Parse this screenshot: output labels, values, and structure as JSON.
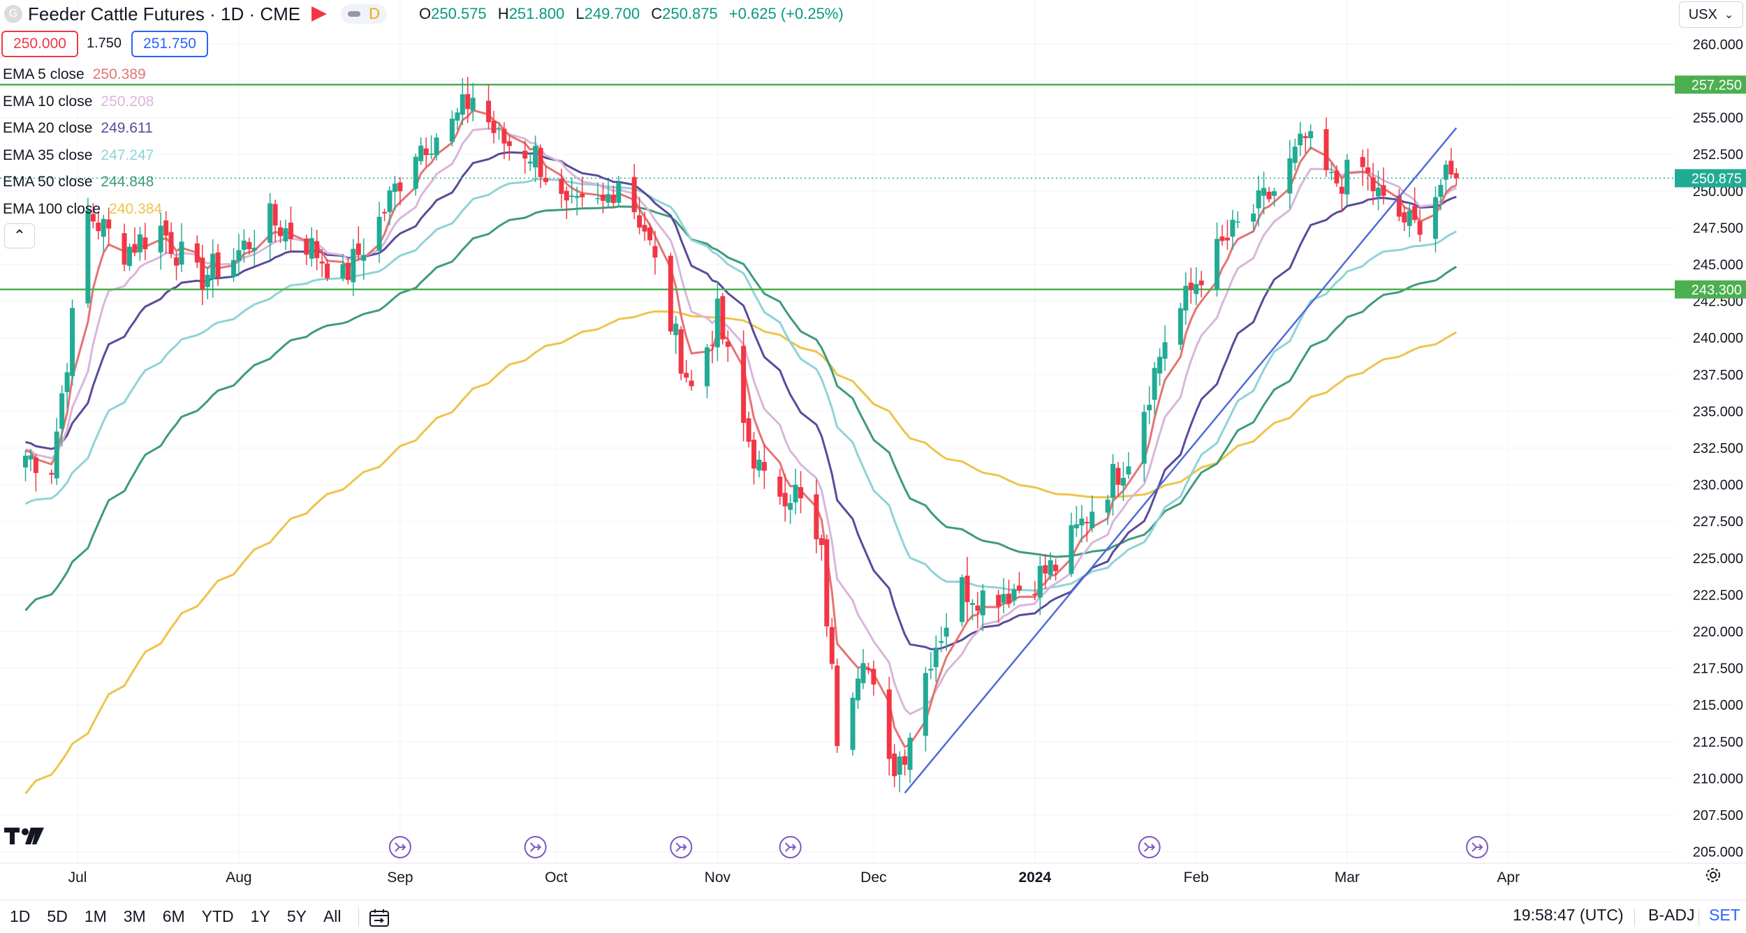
{
  "header": {
    "logo_letter": "G",
    "title": "Feeder Cattle Futures · 1D · CME",
    "pill_label": "D",
    "ohlc": {
      "o_label": "O",
      "o": "250.575",
      "h_label": "H",
      "h": "251.800",
      "l_label": "L",
      "l": "249.700",
      "c_label": "C",
      "c": "250.875",
      "change": "+0.625 (+0.25%)"
    },
    "bid": "250.000",
    "spread": "1.750",
    "ask": "251.750",
    "currency": "USX"
  },
  "emas": [
    {
      "label": "EMA 5 close",
      "value": "250.389",
      "color": "#e57373"
    },
    {
      "label": "EMA 10 close",
      "value": "250.208",
      "color": "#d9b6d9"
    },
    {
      "label": "EMA 20 close",
      "value": "249.611",
      "color": "#5b4a9b"
    },
    {
      "label": "EMA 35 close",
      "value": "247.247",
      "color": "#8fd3d8"
    },
    {
      "label": "EMA 50 close",
      "value": "244.848",
      "color": "#3e9a7e"
    },
    {
      "label": "EMA 100 close",
      "value": "240.384",
      "color": "#eec44a"
    }
  ],
  "toolbar": {
    "ranges": [
      "1D",
      "5D",
      "1M",
      "3M",
      "6M",
      "YTD",
      "1Y",
      "5Y",
      "All"
    ],
    "clock": "19:58:47 (UTC)",
    "adjust": "B-ADJ",
    "set": "SET"
  },
  "chart_data": {
    "type": "candlestick",
    "ylim": [
      204.0,
      261.5
    ],
    "y_ticks": [
      "205.000",
      "207.500",
      "210.000",
      "212.500",
      "215.000",
      "217.500",
      "220.000",
      "222.500",
      "225.000",
      "227.500",
      "230.000",
      "232.500",
      "235.000",
      "237.500",
      "240.000",
      "242.500",
      "245.000",
      "247.500",
      "250.000",
      "252.500",
      "255.000",
      "257.500",
      "260.000"
    ],
    "x_labels": [
      "Jul",
      "Aug",
      "Sep",
      "Oct",
      "Nov",
      "Dec",
      "2024",
      "Feb",
      "Mar",
      "Apr"
    ],
    "horizontal_lines": [
      {
        "value": 257.25,
        "label": "257.250",
        "color": "#4caf50"
      },
      {
        "value": 243.3,
        "label": "243.300",
        "color": "#4caf50"
      }
    ],
    "last_price": {
      "value": 250.875,
      "label": "250.875",
      "color": "#22ab94"
    },
    "trendline": {
      "from": {
        "date": "2023-12-07",
        "value": 209.0
      },
      "to": {
        "date": "2024-03-22",
        "value": 254.3
      },
      "color": "#4f6bd6"
    },
    "anchors": [
      {
        "date": "2023-06-21",
        "close": 232.0
      },
      {
        "date": "2023-06-26",
        "close": 231.3
      },
      {
        "date": "2023-07-03",
        "close": 248.5
      },
      {
        "date": "2023-07-10",
        "close": 246.0
      },
      {
        "date": "2023-07-17",
        "close": 247.5
      },
      {
        "date": "2023-07-24",
        "close": 244.0
      },
      {
        "date": "2023-07-31",
        "close": 245.5
      },
      {
        "date": "2023-08-07",
        "close": 248.0
      },
      {
        "date": "2023-08-14",
        "close": 246.5
      },
      {
        "date": "2023-08-21",
        "close": 244.0
      },
      {
        "date": "2023-08-28",
        "close": 248.0
      },
      {
        "date": "2023-09-04",
        "close": 253.0
      },
      {
        "date": "2023-09-11",
        "close": 254.5
      },
      {
        "date": "2023-09-15",
        "close": 256.5
      },
      {
        "date": "2023-09-20",
        "close": 253.5
      },
      {
        "date": "2023-09-27",
        "close": 252.5
      },
      {
        "date": "2023-10-03",
        "close": 248.5
      },
      {
        "date": "2023-10-10",
        "close": 249.0
      },
      {
        "date": "2023-10-13",
        "close": 251.0
      },
      {
        "date": "2023-10-18",
        "close": 247.5
      },
      {
        "date": "2023-10-23",
        "close": 241.0
      },
      {
        "date": "2023-10-27",
        "close": 236.5
      },
      {
        "date": "2023-11-01",
        "close": 241.5
      },
      {
        "date": "2023-11-06",
        "close": 234.0
      },
      {
        "date": "2023-11-10",
        "close": 230.0
      },
      {
        "date": "2023-11-16",
        "close": 229.5
      },
      {
        "date": "2023-11-21",
        "close": 225.0
      },
      {
        "date": "2023-11-24",
        "close": 213.0
      },
      {
        "date": "2023-11-29",
        "close": 219.0
      },
      {
        "date": "2023-12-04",
        "close": 210.5
      },
      {
        "date": "2023-12-07",
        "close": 212.0
      },
      {
        "date": "2023-12-12",
        "close": 218.5
      },
      {
        "date": "2023-12-18",
        "close": 223.0
      },
      {
        "date": "2023-12-22",
        "close": 222.5
      },
      {
        "date": "2023-12-29",
        "close": 223.0
      },
      {
        "date": "2024-01-05",
        "close": 224.5
      },
      {
        "date": "2024-01-12",
        "close": 228.5
      },
      {
        "date": "2024-01-19",
        "close": 232.0
      },
      {
        "date": "2024-01-26",
        "close": 240.0
      },
      {
        "date": "2024-02-02",
        "close": 244.5
      },
      {
        "date": "2024-02-09",
        "close": 247.5
      },
      {
        "date": "2024-02-16",
        "close": 250.0
      },
      {
        "date": "2024-02-22",
        "close": 253.5
      },
      {
        "date": "2024-02-27",
        "close": 250.5
      },
      {
        "date": "2024-03-04",
        "close": 251.5
      },
      {
        "date": "2024-03-08",
        "close": 249.0
      },
      {
        "date": "2024-03-14",
        "close": 247.5
      },
      {
        "date": "2024-03-19",
        "close": 250.5
      },
      {
        "date": "2024-03-22",
        "close": 250.875
      }
    ],
    "series": [
      {
        "name": "EMA 5 close",
        "color": "#e57373",
        "ends_at": 250.389
      },
      {
        "name": "EMA 10 close",
        "color": "#d9b6d9",
        "ends_at": 250.208
      },
      {
        "name": "EMA 20 close",
        "color": "#5b4a9b",
        "ends_at": 249.611
      },
      {
        "name": "EMA 35 close",
        "color": "#8fd3d8",
        "ends_at": 247.247
      },
      {
        "name": "EMA 50 close",
        "color": "#3e9a7e",
        "ends_at": 244.848
      },
      {
        "name": "EMA 100 close",
        "color": "#eec44a",
        "ends_at": 240.384
      }
    ],
    "event_markers": [
      "2023-09-01",
      "2023-09-27",
      "2023-10-25",
      "2023-11-15",
      "2024-01-23",
      "2024-03-26"
    ],
    "up_color": "#22ab94",
    "down_color": "#f23645",
    "grid": true
  }
}
